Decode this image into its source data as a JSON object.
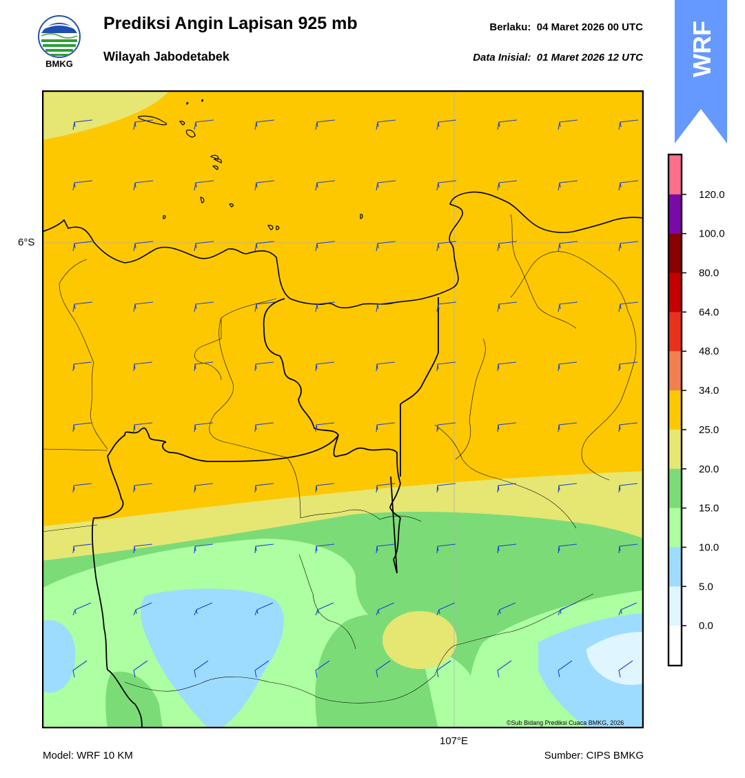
{
  "header": {
    "title": "Prediksi Angin Lapisan 925 mb",
    "subtitle": "Wilayah Jabodetabek",
    "valid_label": "Berlaku:",
    "valid_value": "04 Maret 2026 00 UTC",
    "init_label": "Data Inisial:",
    "init_value": "01 Maret 2026 12 UTC"
  },
  "logo": {
    "text": "BMKG"
  },
  "badge": {
    "text": "WRF",
    "color": "#6699ff"
  },
  "map": {
    "lat_label": "6°S",
    "lon_label": "107°E",
    "credit": "©Sub Bidang Prediksi Cuaca BMKG, 2026",
    "wind_barb_color": "#1a3fd6",
    "coastline_color": "#000000"
  },
  "colorbar": {
    "ticks": [
      "120.0",
      "100.0",
      "80.0",
      "64.0",
      "48.0",
      "34.0",
      "25.0",
      "20.0",
      "15.0",
      "10.0",
      "5.0",
      "0.0"
    ],
    "colors": [
      "#ff6f8c",
      "#7a0aa8",
      "#8b0000",
      "#c40000",
      "#e8321e",
      "#f08050",
      "#fdc800",
      "#e6e673",
      "#7bdc77",
      "#adffa1",
      "#9edcff",
      "#dff5ff",
      "#ffffff"
    ]
  },
  "footer": {
    "model": "Model: WRF 10 KM",
    "source": "Sumber: CIPS BMKG"
  }
}
